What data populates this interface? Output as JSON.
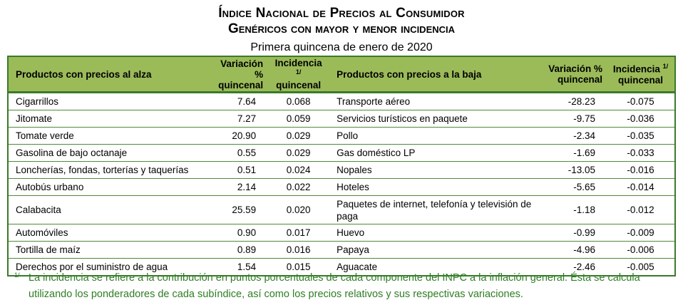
{
  "title": "Índice Nacional de Precios al Consumidor",
  "subtitle": "Genéricos con mayor y menor incidencia",
  "period": "Primera quincena de enero de 2020",
  "headers": {
    "up": "Productos con precios al alza",
    "down": "Productos con precios a la baja",
    "var1": "Variación %",
    "var2": "quincenal",
    "inc1": "Incidencia",
    "inc2": "quincenal",
    "sup": "1/"
  },
  "rows": [
    {
      "up": "Cigarrillos",
      "uv": "7.64",
      "ui": "0.068",
      "down": "Transporte aéreo",
      "dv": "-28.23",
      "di": "-0.075"
    },
    {
      "up": "Jitomate",
      "uv": "7.27",
      "ui": "0.059",
      "down": "Servicios turísticos en paquete",
      "dv": "-9.75",
      "di": "-0.036"
    },
    {
      "up": "Tomate verde",
      "uv": "20.90",
      "ui": "0.029",
      "down": "Pollo",
      "dv": "-2.34",
      "di": "-0.035"
    },
    {
      "up": "Gasolina de bajo octanaje",
      "uv": "0.55",
      "ui": "0.029",
      "down": "Gas doméstico LP",
      "dv": "-1.69",
      "di": "-0.033"
    },
    {
      "up": "Loncherías, fondas, torterías y taquerías",
      "uv": "0.51",
      "ui": "0.024",
      "down": "Nopales",
      "dv": "-13.05",
      "di": "-0.016"
    },
    {
      "up": "Autobús urbano",
      "uv": "2.14",
      "ui": "0.022",
      "down": "Hoteles",
      "dv": "-5.65",
      "di": "-0.014"
    },
    {
      "up": "Calabacita",
      "uv": "25.59",
      "ui": "0.020",
      "down": "Paquetes de internet, telefonía y televisión de paga",
      "dv": "-1.18",
      "di": "-0.012"
    },
    {
      "up": "Automóviles",
      "uv": "0.90",
      "ui": "0.017",
      "down": "Huevo",
      "dv": "-0.99",
      "di": "-0.009"
    },
    {
      "up": "Tortilla de maíz",
      "uv": "0.89",
      "ui": "0.016",
      "down": "Papaya",
      "dv": "-4.96",
      "di": "-0.006"
    },
    {
      "up": "Derechos por el suministro de agua",
      "uv": "1.54",
      "ui": "0.015",
      "down": "Aguacate",
      "dv": "-2.46",
      "di": "-0.005"
    }
  ],
  "footnote": {
    "mark": "1/",
    "text": "La incidencia se refiere a la contribución en puntos porcentuales de cada componente del INPC a la inflación general. Ésta se calcula utilizando los ponderadores de cada subíndice, así como los precios relativos y sus respectivas variaciones."
  }
}
